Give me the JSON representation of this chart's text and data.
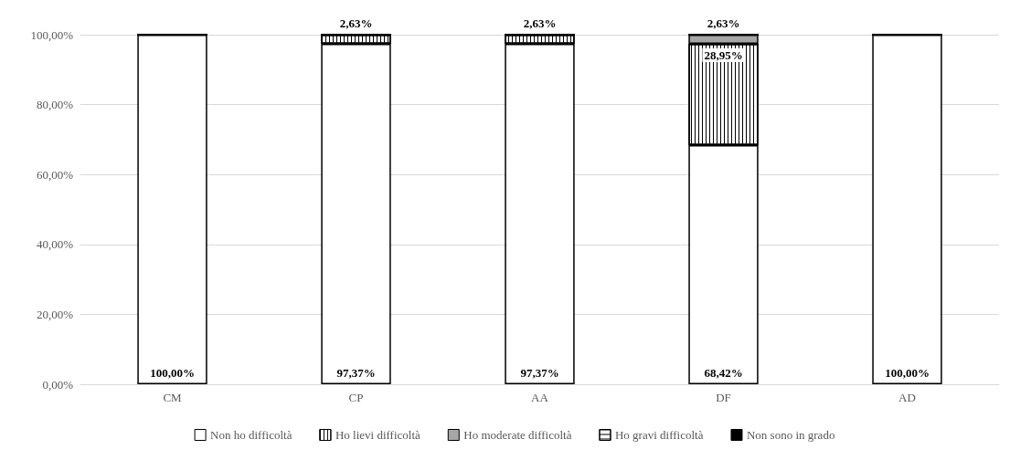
{
  "chart_data": {
    "type": "bar",
    "stacked": true,
    "categories": [
      "CM",
      "CP",
      "AA",
      "DF",
      "AD"
    ],
    "series": [
      {
        "name": "Non ho difficoltà",
        "color": "#ffffff",
        "values": [
          100,
          97.37,
          97.37,
          68.42,
          100
        ],
        "value_labels": [
          "100,00%",
          "97,37%",
          "97,37%",
          "68,42%",
          "100,00%"
        ]
      },
      {
        "name": "Ho lievi difficoltà",
        "color": "#ffffff",
        "values": [
          0,
          2.63,
          2.63,
          28.95,
          0
        ],
        "value_labels": [
          null,
          "2,63%",
          "2,63%",
          "28,95%",
          null
        ]
      },
      {
        "name": "Ho moderate difficoltà",
        "color": "#a6a6a6",
        "values": [
          0,
          0,
          0,
          2.63,
          0
        ],
        "value_labels": [
          null,
          null,
          null,
          "2,63%",
          null
        ]
      },
      {
        "name": "Ho gravi difficoltà",
        "color": "#ffffff",
        "values": [
          0,
          0,
          0,
          0,
          0
        ],
        "value_labels": [
          null,
          null,
          null,
          null,
          null
        ]
      },
      {
        "name": "Non sono in grado",
        "color": "#000000",
        "values": [
          0,
          0,
          0,
          0,
          0
        ],
        "value_labels": [
          null,
          null,
          null,
          null,
          null
        ]
      }
    ],
    "ylim": [
      0,
      100
    ],
    "yticks": [
      {
        "value": 0,
        "label": "0,00%"
      },
      {
        "value": 20,
        "label": "20,00%"
      },
      {
        "value": 40,
        "label": "40,00%"
      },
      {
        "value": 60,
        "label": "60,00%"
      },
      {
        "value": 80,
        "label": "80,00%"
      },
      {
        "value": 100,
        "label": "100,00%"
      }
    ],
    "grid": "y",
    "legend": "bottom"
  }
}
